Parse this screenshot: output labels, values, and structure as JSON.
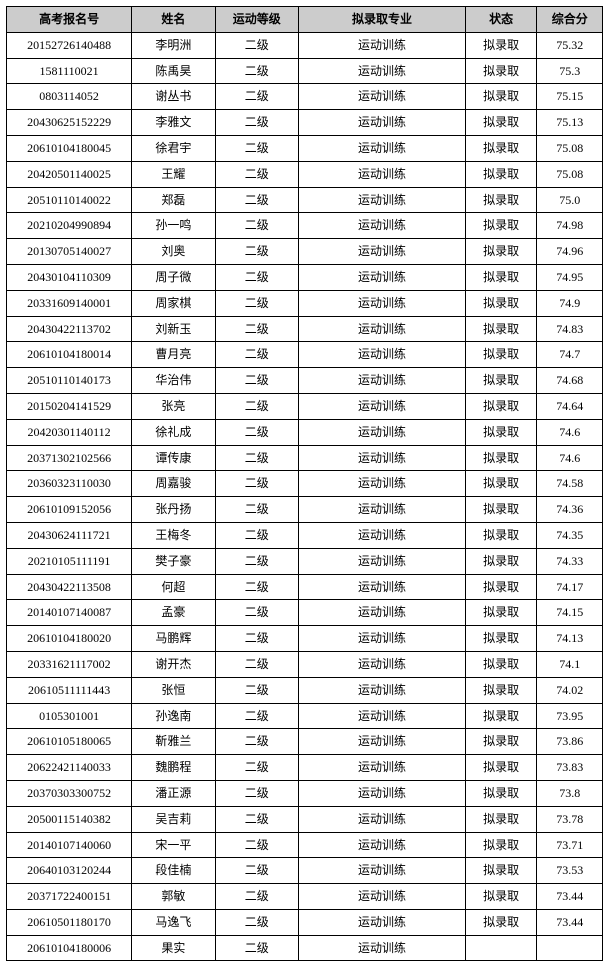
{
  "table": {
    "header_bg": "#cccccc",
    "border_color": "#000000",
    "font_family": "SimSun",
    "font_size": 12,
    "columns": [
      {
        "label": "高考报名号",
        "width": "21%"
      },
      {
        "label": "姓名",
        "width": "14%"
      },
      {
        "label": "运动等级",
        "width": "14%"
      },
      {
        "label": "拟录取专业",
        "width": "28%"
      },
      {
        "label": "状态",
        "width": "12%"
      },
      {
        "label": "综合分",
        "width": "11%"
      }
    ],
    "rows": [
      [
        "20152726140488",
        "李明洲",
        "二级",
        "运动训练",
        "拟录取",
        "75.32"
      ],
      [
        "1581110021",
        "陈禹昊",
        "二级",
        "运动训练",
        "拟录取",
        "75.3"
      ],
      [
        "0803114052",
        "谢丛书",
        "二级",
        "运动训练",
        "拟录取",
        "75.15"
      ],
      [
        "20430625152229",
        "李雅文",
        "二级",
        "运动训练",
        "拟录取",
        "75.13"
      ],
      [
        "20610104180045",
        "徐君宇",
        "二级",
        "运动训练",
        "拟录取",
        "75.08"
      ],
      [
        "20420501140025",
        "王耀",
        "二级",
        "运动训练",
        "拟录取",
        "75.08"
      ],
      [
        "20510110140022",
        "郑磊",
        "二级",
        "运动训练",
        "拟录取",
        "75.0"
      ],
      [
        "20210204990894",
        "孙一鸣",
        "二级",
        "运动训练",
        "拟录取",
        "74.98"
      ],
      [
        "20130705140027",
        "刘奥",
        "二级",
        "运动训练",
        "拟录取",
        "74.96"
      ],
      [
        "20430104110309",
        "周子微",
        "二级",
        "运动训练",
        "拟录取",
        "74.95"
      ],
      [
        "20331609140001",
        "周家棋",
        "二级",
        "运动训练",
        "拟录取",
        "74.9"
      ],
      [
        "20430422113702",
        "刘新玉",
        "二级",
        "运动训练",
        "拟录取",
        "74.83"
      ],
      [
        "20610104180014",
        "曹月亮",
        "二级",
        "运动训练",
        "拟录取",
        "74.7"
      ],
      [
        "20510110140173",
        "华治伟",
        "二级",
        "运动训练",
        "拟录取",
        "74.68"
      ],
      [
        "20150204141529",
        "张亮",
        "二级",
        "运动训练",
        "拟录取",
        "74.64"
      ],
      [
        "20420301140112",
        "徐礼成",
        "二级",
        "运动训练",
        "拟录取",
        "74.6"
      ],
      [
        "20371302102566",
        "谭传康",
        "二级",
        "运动训练",
        "拟录取",
        "74.6"
      ],
      [
        "20360323110030",
        "周嘉骏",
        "二级",
        "运动训练",
        "拟录取",
        "74.58"
      ],
      [
        "20610109152056",
        "张丹扬",
        "二级",
        "运动训练",
        "拟录取",
        "74.36"
      ],
      [
        "20430624111721",
        "王梅冬",
        "二级",
        "运动训练",
        "拟录取",
        "74.35"
      ],
      [
        "20210105111191",
        "樊子豪",
        "二级",
        "运动训练",
        "拟录取",
        "74.33"
      ],
      [
        "20430422113508",
        "何超",
        "二级",
        "运动训练",
        "拟录取",
        "74.17"
      ],
      [
        "20140107140087",
        "孟豪",
        "二级",
        "运动训练",
        "拟录取",
        "74.15"
      ],
      [
        "20610104180020",
        "马鹏辉",
        "二级",
        "运动训练",
        "拟录取",
        "74.13"
      ],
      [
        "20331621117002",
        "谢开杰",
        "二级",
        "运动训练",
        "拟录取",
        "74.1"
      ],
      [
        "20610511111443",
        "张恒",
        "二级",
        "运动训练",
        "拟录取",
        "74.02"
      ],
      [
        "0105301001",
        "孙逸南",
        "二级",
        "运动训练",
        "拟录取",
        "73.95"
      ],
      [
        "20610105180065",
        "靳雅兰",
        "二级",
        "运动训练",
        "拟录取",
        "73.86"
      ],
      [
        "20622421140033",
        "魏鹏程",
        "二级",
        "运动训练",
        "拟录取",
        "73.83"
      ],
      [
        "20370303300752",
        "潘正源",
        "二级",
        "运动训练",
        "拟录取",
        "73.8"
      ],
      [
        "20500115140382",
        "吴吉莉",
        "二级",
        "运动训练",
        "拟录取",
        "73.78"
      ],
      [
        "20140107140060",
        "宋一平",
        "二级",
        "运动训练",
        "拟录取",
        "73.71"
      ],
      [
        "20640103120244",
        "段佳楠",
        "二级",
        "运动训练",
        "拟录取",
        "73.53"
      ],
      [
        "20371722400151",
        "郭敏",
        "二级",
        "运动训练",
        "拟录取",
        "73.44"
      ],
      [
        "20610501180170",
        "马逸飞",
        "二级",
        "运动训练",
        "拟录取",
        "73.44"
      ],
      [
        "20610104180006",
        "果实",
        "二级",
        "运动训练",
        "",
        ""
      ]
    ]
  }
}
